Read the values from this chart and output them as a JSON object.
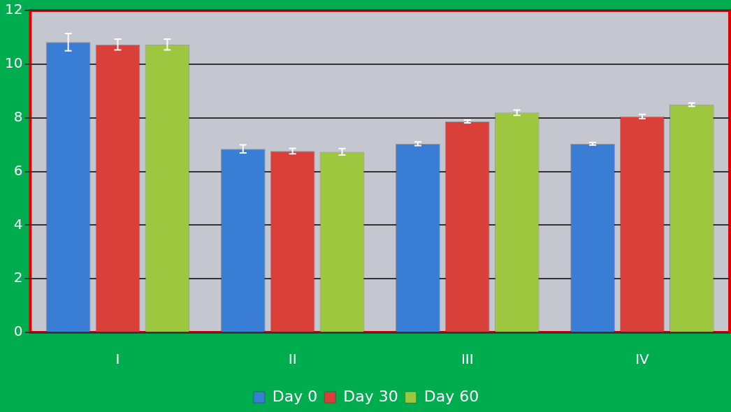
{
  "chart_data": {
    "type": "bar",
    "categories": [
      "I",
      "II",
      "III",
      "IV"
    ],
    "series": [
      {
        "name": "Day 0",
        "color": "#3a7dd4",
        "values": [
          10.82,
          6.84,
          7.03,
          7.03
        ],
        "errors": [
          0.32,
          0.15,
          0.07,
          0.05
        ]
      },
      {
        "name": "Day 30",
        "color": "#d9403a",
        "values": [
          10.73,
          6.76,
          7.86,
          8.05
        ],
        "errors": [
          0.2,
          0.1,
          0.05,
          0.08
        ]
      },
      {
        "name": "Day 60",
        "color": "#9dc73e",
        "values": [
          10.73,
          6.73,
          8.19,
          8.49
        ],
        "errors": [
          0.2,
          0.12,
          0.1,
          0.06
        ]
      }
    ],
    "ylim": [
      0,
      12
    ],
    "yticks": [
      0,
      2,
      4,
      6,
      8,
      10,
      12
    ],
    "grid": "y",
    "legend": "bottom"
  }
}
